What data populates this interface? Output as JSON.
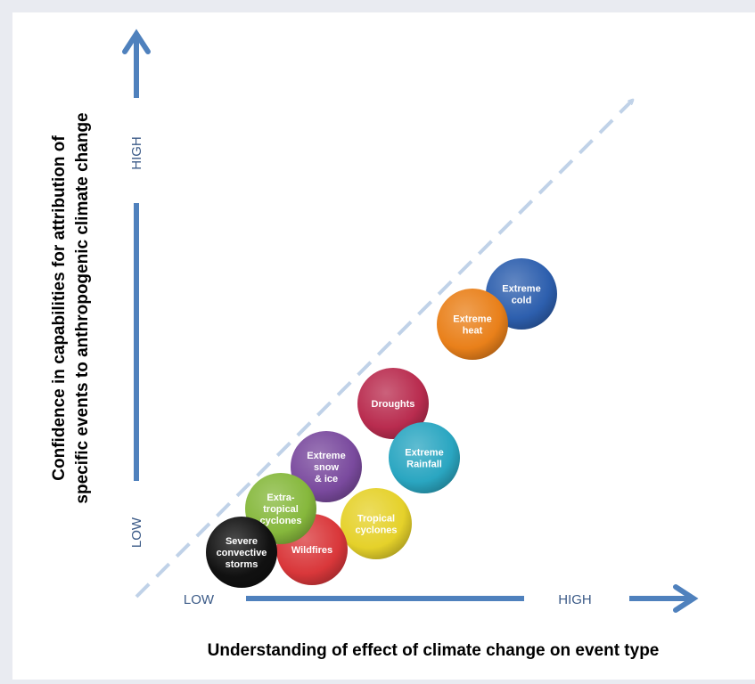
{
  "diagram": {
    "x_axis": {
      "title": "Understanding of effect of climate change on event type",
      "low_label": "LOW",
      "high_label": "HIGH"
    },
    "y_axis": {
      "title_line1": "Confidence in capabilities for attribution of",
      "title_line2": "specific events to anthropogenic climate change",
      "low_label": "LOW",
      "high_label": "HIGH"
    },
    "events": [
      {
        "id": "extreme-cold",
        "lines": [
          "Extreme",
          "cold"
        ],
        "color": "#2d5fae"
      },
      {
        "id": "extreme-heat",
        "lines": [
          "Extreme",
          "heat"
        ],
        "color": "#e9801a"
      },
      {
        "id": "droughts",
        "lines": [
          "Droughts"
        ],
        "color": "#b92c4f"
      },
      {
        "id": "extreme-rainfall",
        "lines": [
          "Extreme",
          "Rainfall"
        ],
        "color": "#2aa6c1"
      },
      {
        "id": "extreme-snow-ice",
        "lines": [
          "Extreme",
          "snow",
          "& ice"
        ],
        "color": "#7a4a9e"
      },
      {
        "id": "tropical-cyclones",
        "lines": [
          "Tropical",
          "cyclones"
        ],
        "color": "#e5d12a"
      },
      {
        "id": "wildfires",
        "lines": [
          "Wildfires"
        ],
        "color": "#d9373a"
      },
      {
        "id": "extra-tropical-cyclones",
        "lines": [
          "Extra-",
          "tropical",
          "cyclones"
        ],
        "color": "#86b83c"
      },
      {
        "id": "severe-convective-storms",
        "lines": [
          "Severe",
          "convective",
          "storms"
        ],
        "color": "#111111"
      }
    ]
  }
}
